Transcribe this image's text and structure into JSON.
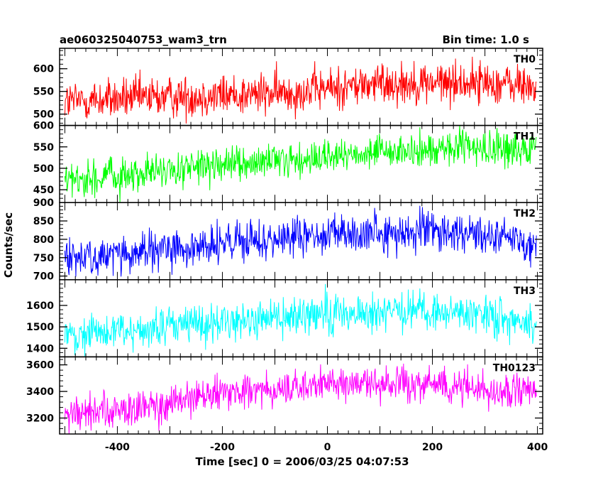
{
  "header": {
    "left_title": "ae060325040753_wam3_trn",
    "right_title": "Bin time: 1.0 s"
  },
  "chart_data": {
    "type": "line",
    "xlabel": "Time [sec] 0 = 2006/03/25 04:07:53",
    "ylabel": "Counts/sec",
    "xlim": [
      -510,
      410
    ],
    "xticks": [
      -400,
      -200,
      0,
      200,
      400
    ],
    "bin_time_s": 1.0,
    "panels": [
      {
        "name": "TH0",
        "color": "#ff0000",
        "ylim": [
          475,
          645
        ],
        "yticks": [
          500,
          550,
          600
        ],
        "trend_x": [
          -500,
          -300,
          -100,
          100,
          300,
          400
        ],
        "trend_y": [
          528,
          538,
          545,
          568,
          570,
          560
        ],
        "noise_sigma": 23
      },
      {
        "name": "TH1",
        "color": "#00ff00",
        "ylim": [
          420,
          600
        ],
        "yticks": [
          450,
          500,
          550,
          600
        ],
        "trend_x": [
          -500,
          -300,
          -100,
          100,
          300,
          400
        ],
        "trend_y": [
          470,
          495,
          515,
          535,
          548,
          542
        ],
        "noise_sigma": 20
      },
      {
        "name": "TH2",
        "color": "#0000ff",
        "ylim": [
          690,
          900
        ],
        "yticks": [
          700,
          750,
          800,
          850,
          900
        ],
        "trend_x": [
          -500,
          -300,
          -100,
          100,
          300,
          400
        ],
        "trend_y": [
          748,
          770,
          800,
          820,
          820,
          785
        ],
        "noise_sigma": 27
      },
      {
        "name": "TH3",
        "color": "#00ffff",
        "ylim": [
          1360,
          1720
        ],
        "yticks": [
          1400,
          1500,
          1600
        ],
        "trend_x": [
          -500,
          -300,
          -100,
          100,
          300,
          400
        ],
        "trend_y": [
          1460,
          1500,
          1545,
          1570,
          1560,
          1510
        ],
        "noise_sigma": 45
      },
      {
        "name": "TH0123",
        "color": "#ff00ff",
        "ylim": [
          3080,
          3660
        ],
        "yticks": [
          3200,
          3400,
          3600
        ],
        "trend_x": [
          -500,
          -300,
          -200,
          0,
          200,
          400
        ],
        "trend_y": [
          3220,
          3300,
          3380,
          3450,
          3460,
          3380
        ],
        "noise_sigma": 65
      }
    ]
  }
}
